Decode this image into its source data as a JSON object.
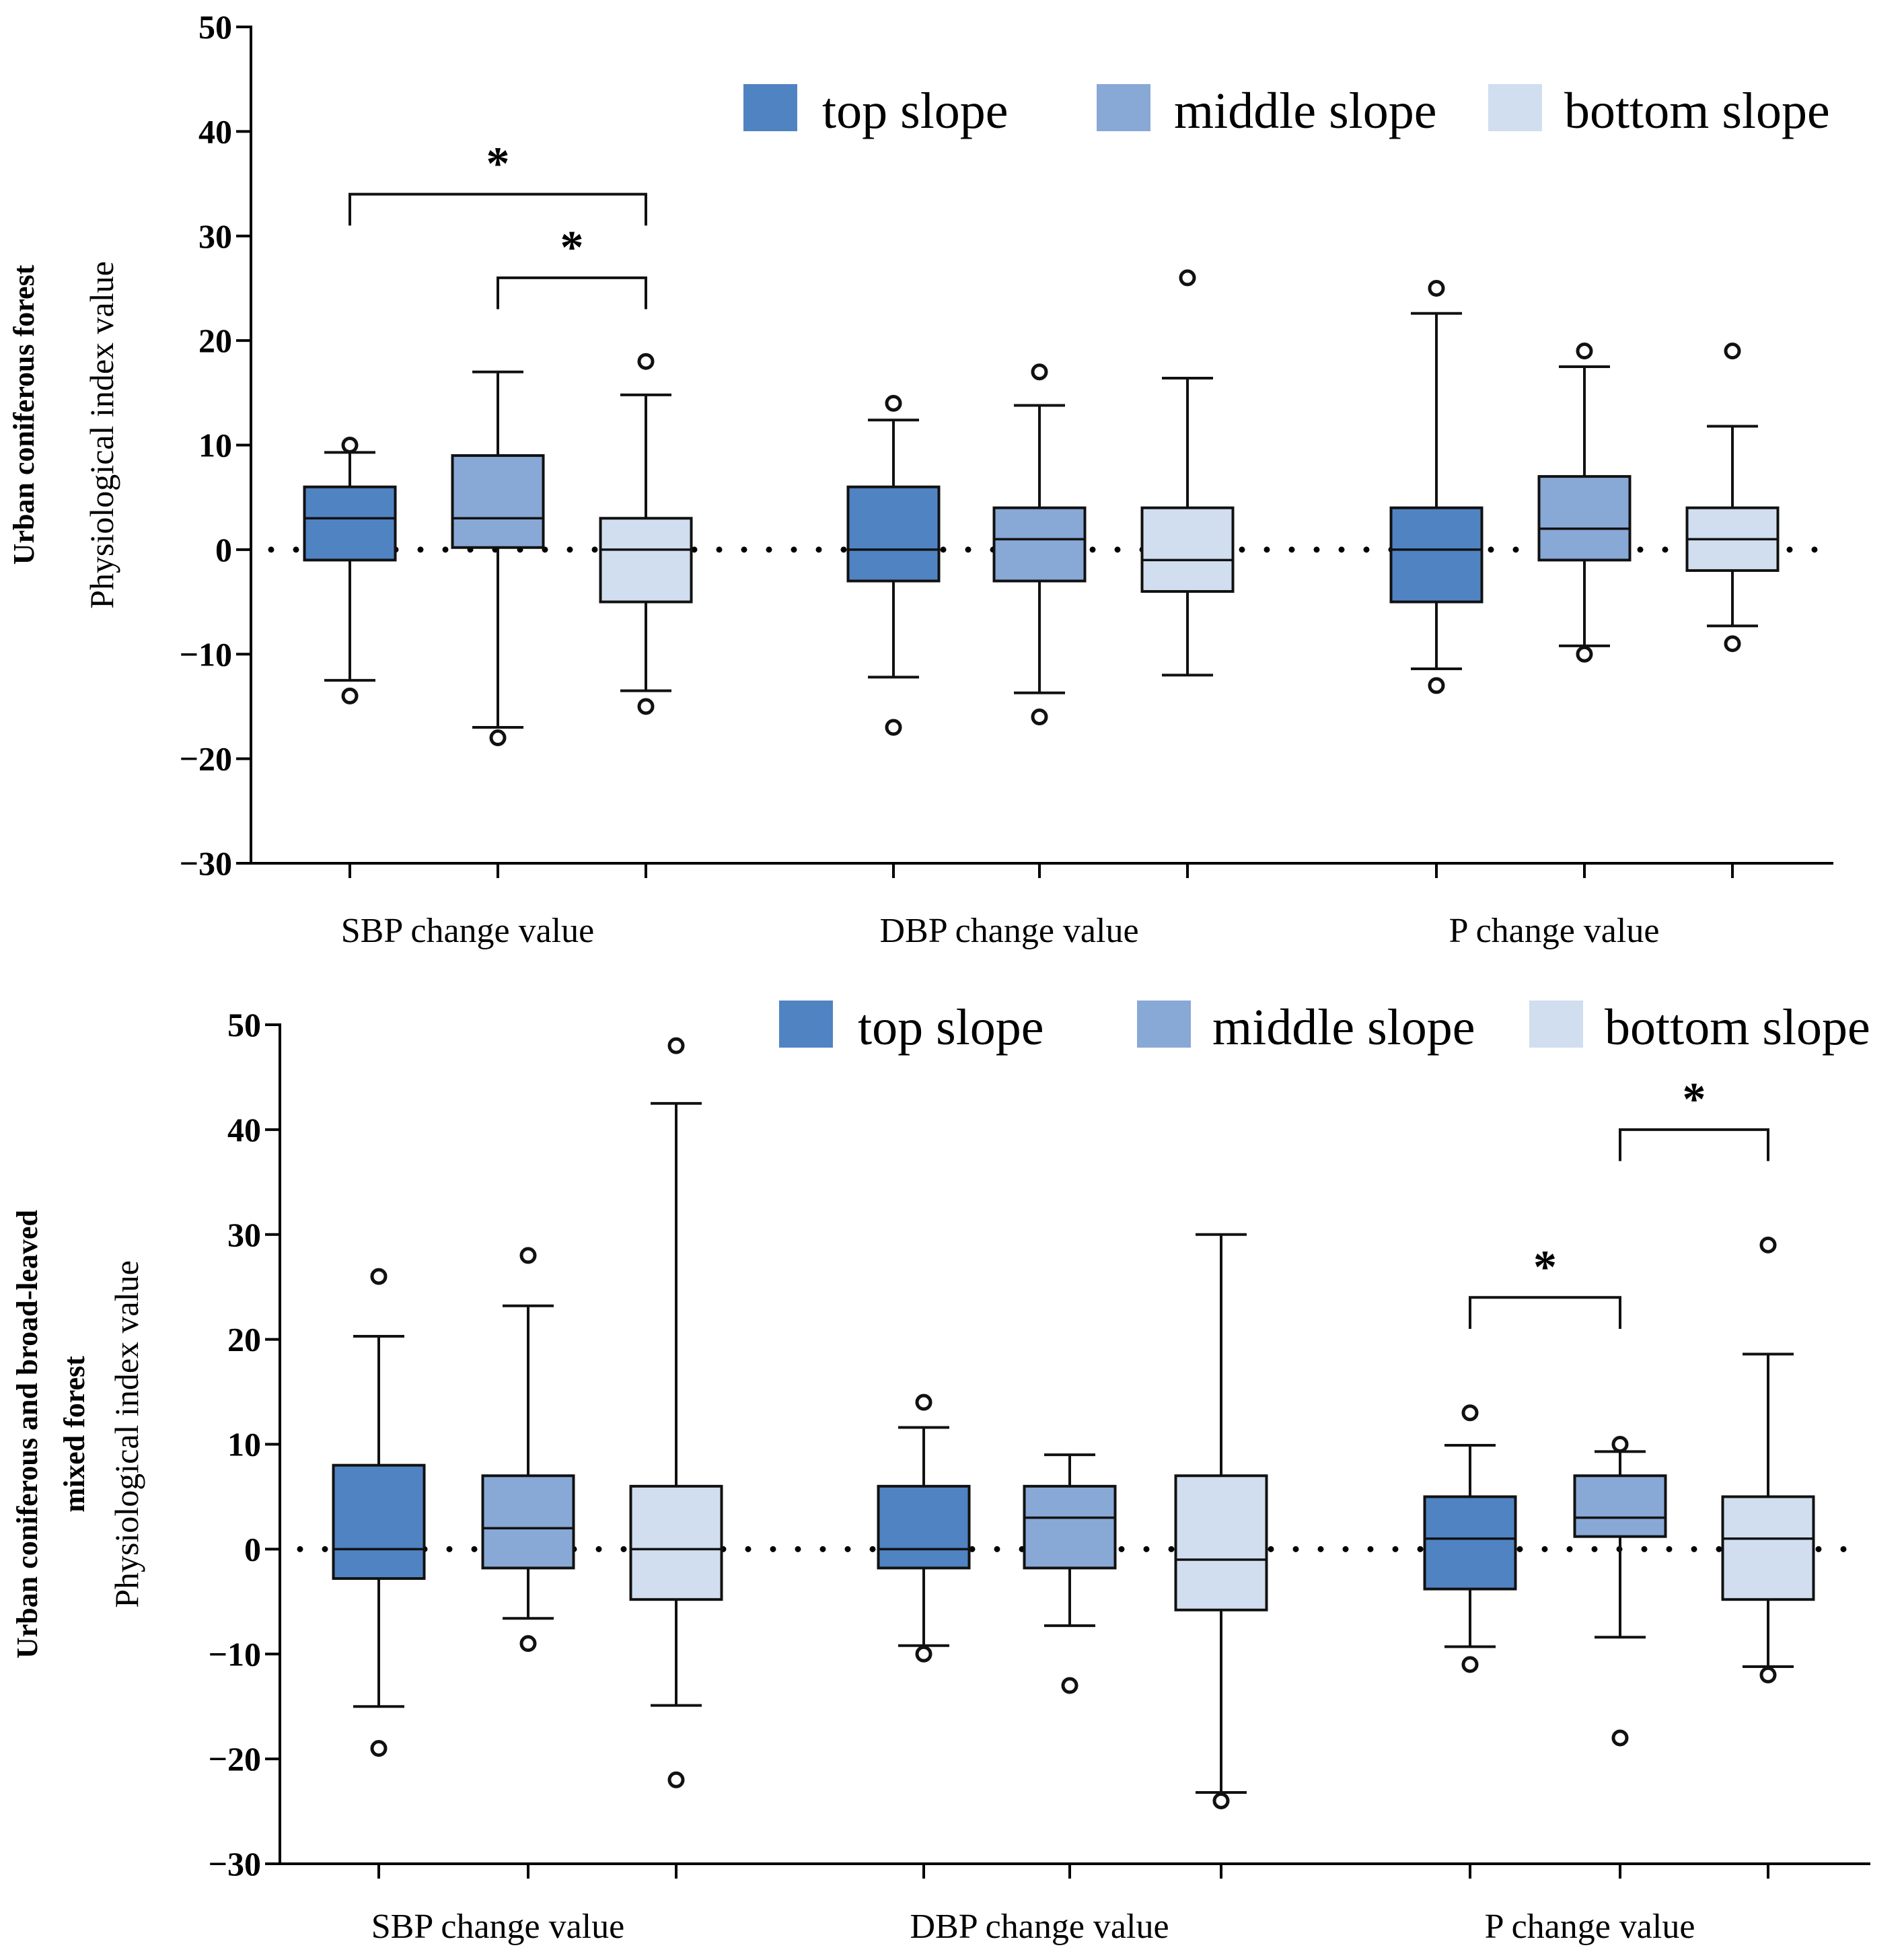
{
  "colors": {
    "top": "#5083c2",
    "middle": "#88a8d6",
    "bottom": "#d0deef",
    "stroke": "#111111"
  },
  "chart_data": [
    {
      "type": "box",
      "panel_title": "Urban coniferous forest",
      "ylabel": "Physiological index value",
      "ylim": [
        -30,
        50
      ],
      "yticks": [
        -30,
        -20,
        -10,
        0,
        10,
        20,
        30,
        40,
        50
      ],
      "categories": [
        "SBP change value",
        "DBP change value",
        "P change value"
      ],
      "legend": [
        "top slope",
        "middle slope",
        "bottom slope"
      ],
      "reference_line": 0,
      "boxes": [
        {
          "category": "SBP change value",
          "series": "top slope",
          "q1": -1,
          "median": 3,
          "q3": 6,
          "whisker_low": -12.5,
          "whisker_high": 9.3,
          "outliers": [
            10,
            -14
          ]
        },
        {
          "category": "SBP change value",
          "series": "middle slope",
          "q1": 0.2,
          "median": 3,
          "q3": 9,
          "whisker_low": -17,
          "whisker_high": 17,
          "outliers": [
            -18
          ]
        },
        {
          "category": "SBP change value",
          "series": "bottom slope",
          "q1": -5,
          "median": 0,
          "q3": 3,
          "whisker_low": -13.5,
          "whisker_high": 14.8,
          "outliers": [
            18,
            -15
          ]
        },
        {
          "category": "DBP change value",
          "series": "top slope",
          "q1": -3,
          "median": 0,
          "q3": 6,
          "whisker_low": -12.2,
          "whisker_high": 12.4,
          "outliers": [
            14,
            -17
          ]
        },
        {
          "category": "DBP change value",
          "series": "middle slope",
          "q1": -3,
          "median": 1,
          "q3": 4,
          "whisker_low": -13.7,
          "whisker_high": 13.8,
          "outliers": [
            17,
            -16
          ]
        },
        {
          "category": "DBP change value",
          "series": "bottom slope",
          "q1": -4,
          "median": -1,
          "q3": 4,
          "whisker_low": -12,
          "whisker_high": 16.4,
          "outliers": [
            26
          ]
        },
        {
          "category": "P change value",
          "series": "top slope",
          "q1": -5,
          "median": 0,
          "q3": 4,
          "whisker_low": -11.4,
          "whisker_high": 22.6,
          "outliers": [
            25,
            -13
          ]
        },
        {
          "category": "P change value",
          "series": "middle slope",
          "q1": -1,
          "median": 2,
          "q3": 7,
          "whisker_low": -9.2,
          "whisker_high": 17.5,
          "outliers": [
            19,
            -10
          ]
        },
        {
          "category": "P change value",
          "series": "bottom slope",
          "q1": -2,
          "median": 1,
          "q3": 4,
          "whisker_low": -7.3,
          "whisker_high": 11.8,
          "outliers": [
            19,
            -9
          ]
        }
      ],
      "significance": [
        {
          "category": "SBP change value",
          "from": "top slope",
          "to": "bottom slope",
          "y": 34,
          "label": "*"
        },
        {
          "category": "SBP change value",
          "from": "middle slope",
          "to": "bottom slope",
          "y": 26,
          "label": "*"
        }
      ]
    },
    {
      "type": "box",
      "panel_title": "Urban coniferous and broad-leaved mixed forest",
      "panel_title_lines": [
        "Urban coniferous and broad-leaved",
        "mixed forest"
      ],
      "ylabel": "Physiological index value",
      "ylim": [
        -30,
        50
      ],
      "yticks": [
        -30,
        -20,
        -10,
        0,
        10,
        20,
        30,
        40,
        50
      ],
      "categories": [
        "SBP change value",
        "DBP change value",
        "P change value"
      ],
      "legend": [
        "top slope",
        "middle slope",
        "bottom slope"
      ],
      "reference_line": 0,
      "boxes": [
        {
          "category": "SBP change value",
          "series": "top slope",
          "q1": -2.8,
          "median": 0,
          "q3": 8,
          "whisker_low": -15,
          "whisker_high": 20.3,
          "outliers": [
            26,
            -19
          ]
        },
        {
          "category": "SBP change value",
          "series": "middle slope",
          "q1": -1.8,
          "median": 2,
          "q3": 7,
          "whisker_low": -6.6,
          "whisker_high": 23.2,
          "outliers": [
            28,
            -9
          ]
        },
        {
          "category": "SBP change value",
          "series": "bottom slope",
          "q1": -4.8,
          "median": 0,
          "q3": 6,
          "whisker_low": -14.9,
          "whisker_high": 42.5,
          "outliers": [
            48,
            -22
          ]
        },
        {
          "category": "DBP change value",
          "series": "top slope",
          "q1": -1.8,
          "median": 0,
          "q3": 6,
          "whisker_low": -9.2,
          "whisker_high": 11.6,
          "outliers": [
            14,
            -10
          ]
        },
        {
          "category": "DBP change value",
          "series": "middle slope",
          "q1": -1.8,
          "median": 3,
          "q3": 6,
          "whisker_low": -7.3,
          "whisker_high": 9,
          "outliers": [
            -13
          ]
        },
        {
          "category": "DBP change value",
          "series": "bottom slope",
          "q1": -5.8,
          "median": -1,
          "q3": 7,
          "whisker_low": -23.2,
          "whisker_high": 30,
          "outliers": [
            -24
          ]
        },
        {
          "category": "P change value",
          "series": "top slope",
          "q1": -3.8,
          "median": 1,
          "q3": 5,
          "whisker_low": -9.3,
          "whisker_high": 9.9,
          "outliers": [
            13,
            -11
          ]
        },
        {
          "category": "P change value",
          "series": "middle slope",
          "q1": 1.2,
          "median": 3,
          "q3": 7,
          "whisker_low": -8.4,
          "whisker_high": 9.3,
          "outliers": [
            10,
            -18
          ]
        },
        {
          "category": "P change value",
          "series": "bottom slope",
          "q1": -4.8,
          "median": 1,
          "q3": 5,
          "whisker_low": -11.2,
          "whisker_high": 18.6,
          "outliers": [
            29,
            -12
          ]
        }
      ],
      "significance": [
        {
          "category": "P change value",
          "from": "top slope",
          "to": "middle slope",
          "y": 24,
          "label": "*"
        },
        {
          "category": "P change value",
          "from": "middle slope",
          "to": "bottom slope",
          "y": 40,
          "label": "*"
        }
      ]
    }
  ]
}
